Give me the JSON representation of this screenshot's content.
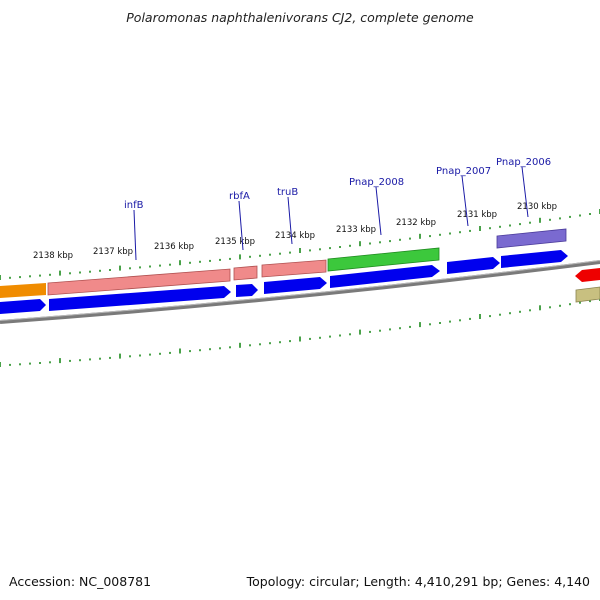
{
  "title": "Polaromonas naphthalenivorans CJ2, complete genome",
  "footer": {
    "accession": "Accession: NC_008781",
    "summary": "Topology: circular; Length: 4,410,291 bp; Genes: 4,140"
  },
  "colors": {
    "backbone": "#808080",
    "tick": "#1c8a1c",
    "gene_label": "#1a1aa6",
    "cds": "#0000ee",
    "rRNA_like": "#f08a8a",
    "green_feature": "#3cc83c",
    "orange_feature": "#f08c00",
    "purple_feature": "#7a6ad0",
    "red_feature": "#ee0000",
    "olive_feature": "#c8c080"
  },
  "ticks": [
    {
      "label": "2138 kbp"
    },
    {
      "label": "2137 kbp"
    },
    {
      "label": "2136 kbp"
    },
    {
      "label": "2135 kbp"
    },
    {
      "label": "2134 kbp"
    },
    {
      "label": "2133 kbp"
    },
    {
      "label": "2132 kbp"
    },
    {
      "label": "2131 kbp"
    },
    {
      "label": "2130 kbp"
    }
  ],
  "gene_labels": [
    {
      "name": "infB"
    },
    {
      "name": "rbfA"
    },
    {
      "name": "truB"
    },
    {
      "name": "Pnap_2008"
    },
    {
      "name": "Pnap_2007"
    },
    {
      "name": "Pnap_2006"
    }
  ]
}
